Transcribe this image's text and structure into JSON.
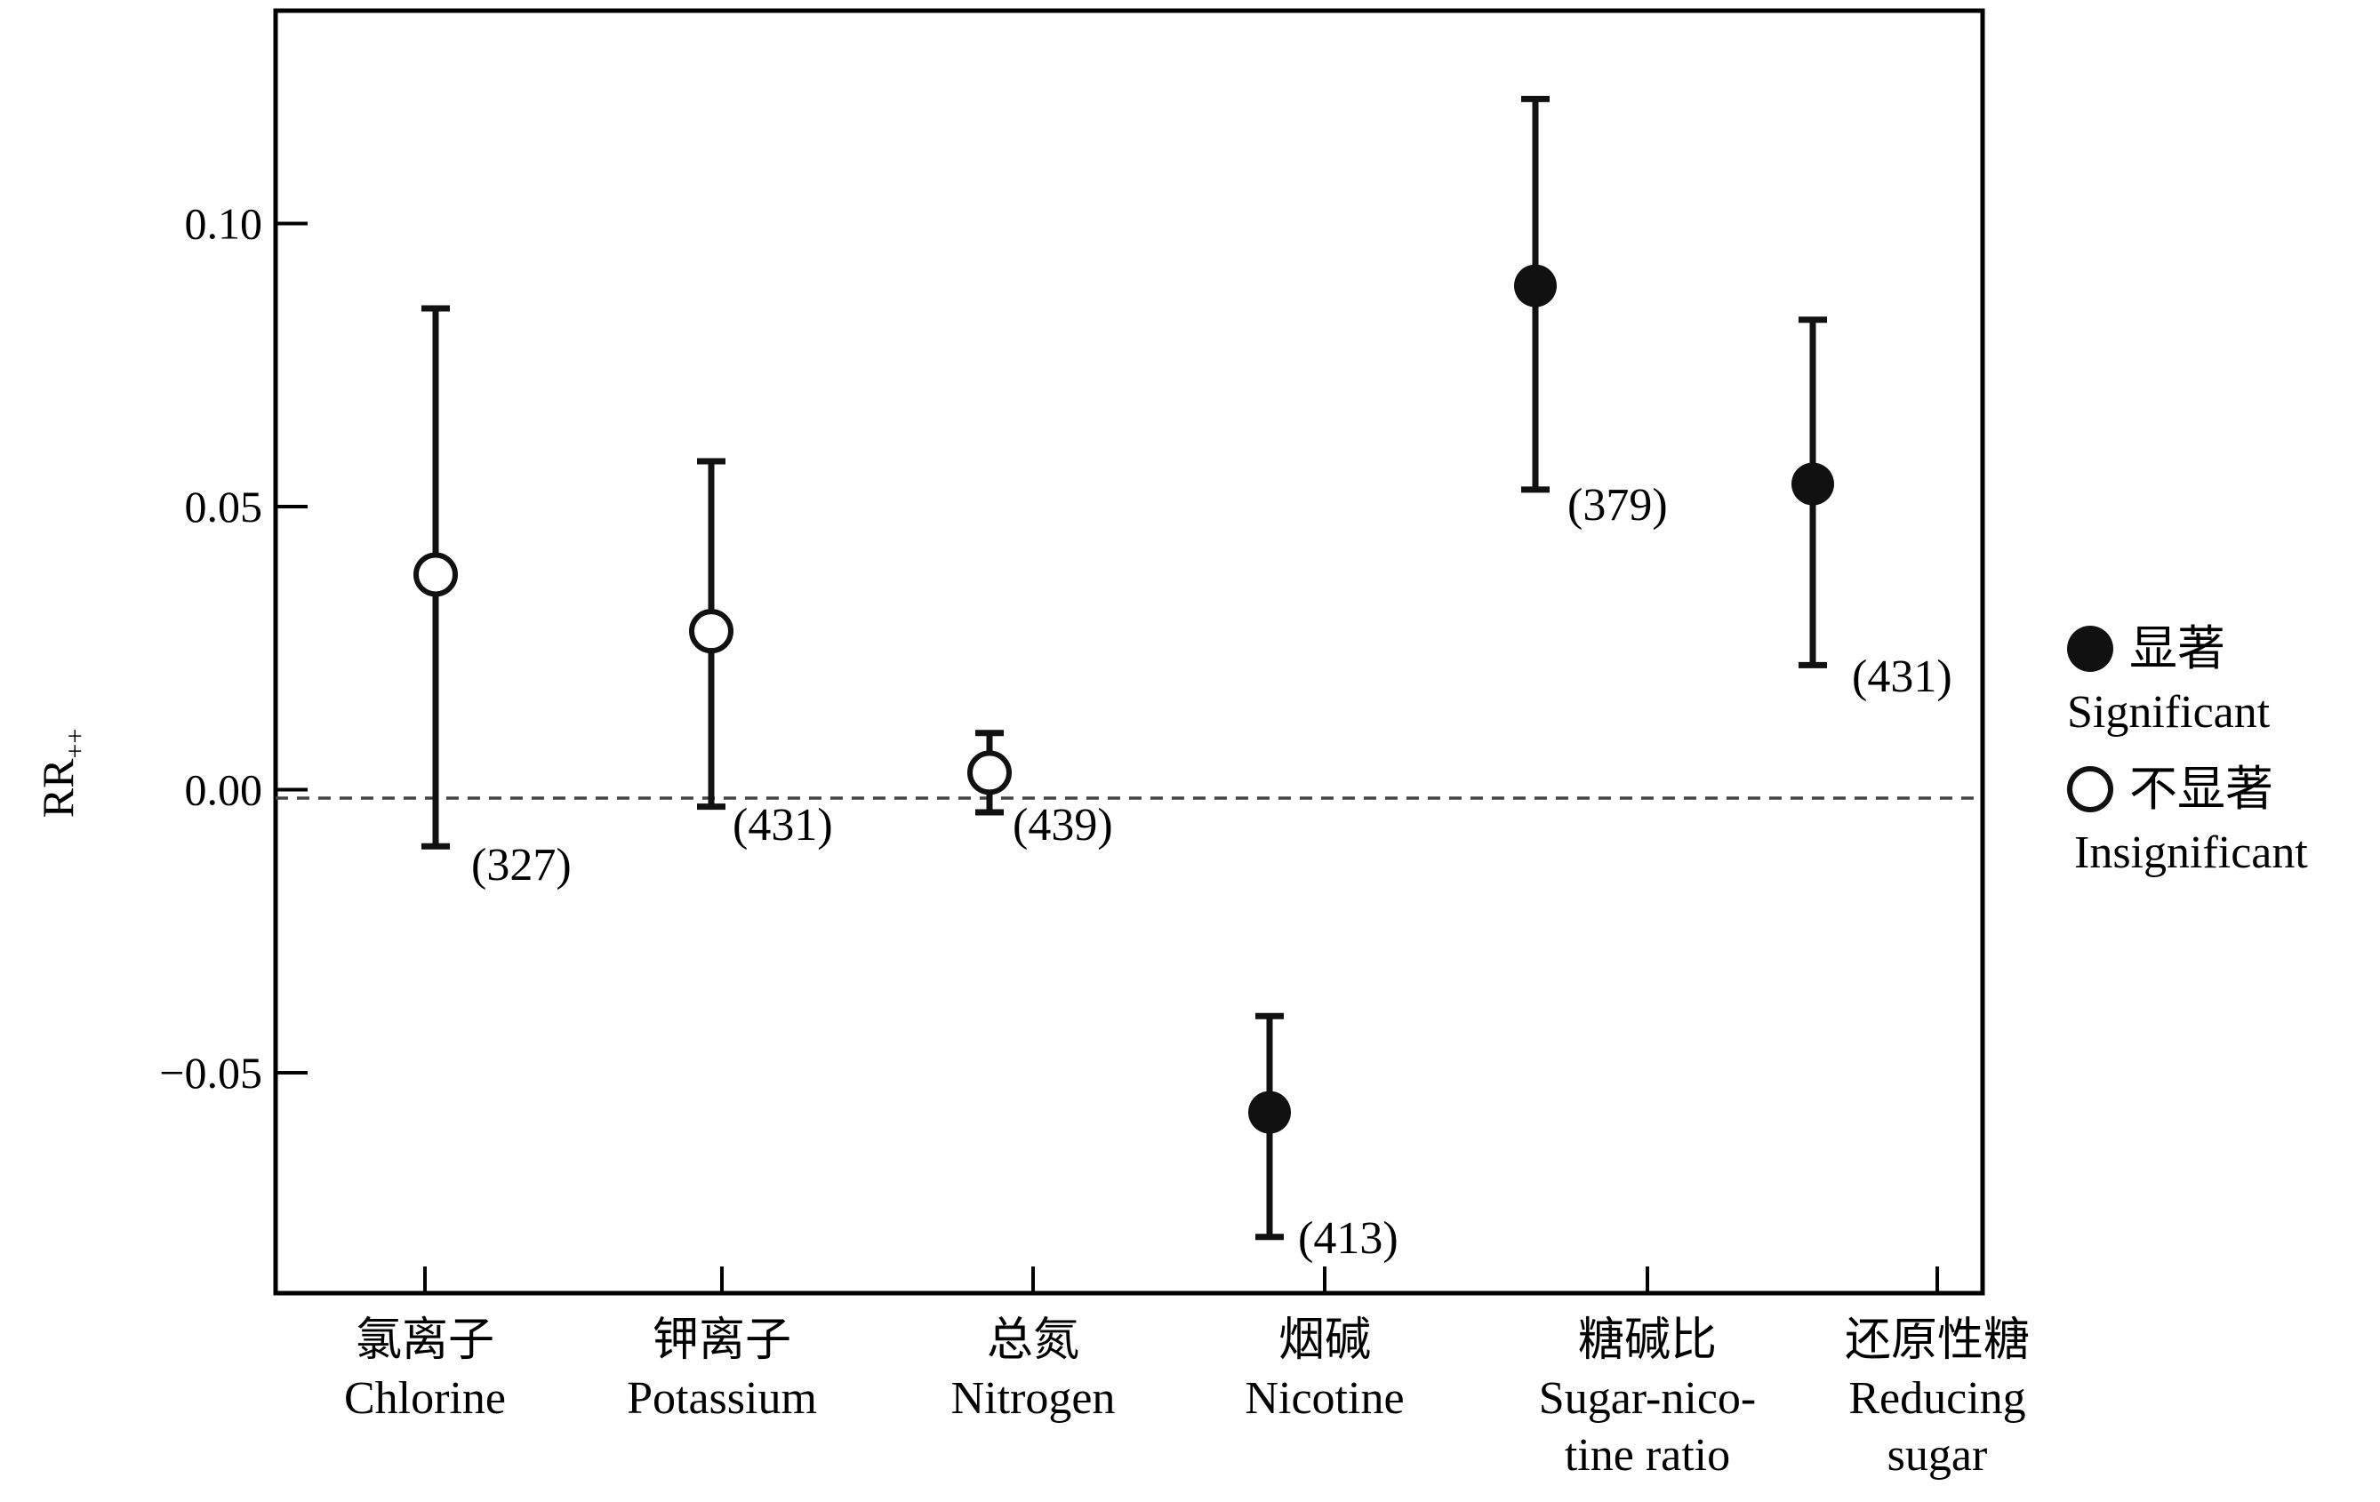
{
  "chart_data": {
    "type": "scatter",
    "subtype": "forest-plot-with-error-bars",
    "ylabel": "RR",
    "ylabel_subscript": "++",
    "ylim": [
      -0.09,
      0.138
    ],
    "yticks": [
      {
        "value": 0.1,
        "label": "0.10"
      },
      {
        "value": 0.05,
        "label": "0.05"
      },
      {
        "value": 0.0,
        "label": "0.00"
      },
      {
        "value": -0.05,
        "label": "−0.05"
      }
    ],
    "reference_line": -0.0015,
    "categories": [
      {
        "zh": "氯离子",
        "en": [
          "Chlorine"
        ]
      },
      {
        "zh": "钾离子",
        "en": [
          "Potassium"
        ]
      },
      {
        "zh": "总氮",
        "en": [
          "Nitrogen"
        ]
      },
      {
        "zh": "烟碱",
        "en": [
          "Nicotine"
        ]
      },
      {
        "zh": "糖碱比",
        "en": [
          "Sugar-nico-",
          "tine ratio"
        ]
      },
      {
        "zh": "还原性糖",
        "en": [
          "Reducing",
          "sugar"
        ]
      }
    ],
    "points": [
      {
        "category": 0,
        "value": 0.038,
        "lower": -0.01,
        "upper": 0.085,
        "significant": false,
        "n_label": "(327)"
      },
      {
        "category": 1,
        "value": 0.028,
        "lower": -0.003,
        "upper": 0.058,
        "significant": false,
        "n_label": "(431)"
      },
      {
        "category": 2,
        "value": 0.003,
        "lower": -0.004,
        "upper": 0.01,
        "significant": false,
        "n_label": "(439)"
      },
      {
        "category": 3,
        "value": -0.057,
        "lower": -0.079,
        "upper": -0.04,
        "significant": true,
        "n_label": "(413)"
      },
      {
        "category": 4,
        "value": 0.089,
        "lower": 0.053,
        "upper": 0.122,
        "significant": true,
        "n_label": "(379)"
      },
      {
        "category": 5,
        "value": 0.054,
        "lower": 0.022,
        "upper": 0.083,
        "significant": true,
        "n_label": "(431)"
      }
    ],
    "legend": {
      "position": "right",
      "entries": [
        {
          "marker": "filled-circle",
          "zh": "显著",
          "en": "Significant"
        },
        {
          "marker": "open-circle",
          "zh": "不显著",
          "en": "Insignificant"
        }
      ]
    },
    "grid": false
  }
}
